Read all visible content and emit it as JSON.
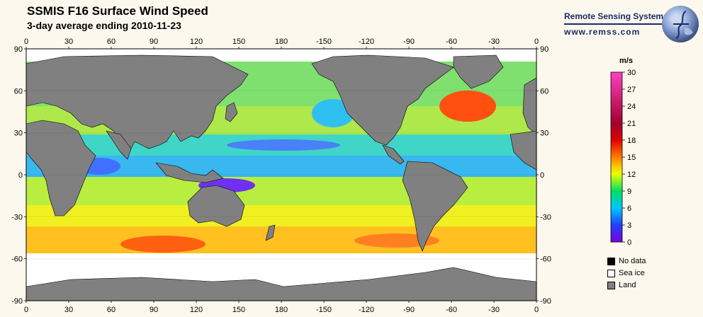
{
  "header": {
    "title": "SSMIS F16 Surface Wind Speed",
    "subtitle": "3-day average ending 2010-11-23"
  },
  "brand": {
    "name": "Remote Sensing Systems",
    "url": "www.remss.com",
    "logo_icon": "globe-icon"
  },
  "map": {
    "lon_ticks": [
      "0",
      "30",
      "60",
      "90",
      "120",
      "150",
      "180",
      "-150",
      "-120",
      "-90",
      "-60",
      "-30",
      "0"
    ],
    "lat_ticks": [
      "90",
      "60",
      "30",
      "0",
      "-30",
      "-60",
      "-90"
    ],
    "colors": {
      "land": "#808080",
      "sea_ice": "#ffffff",
      "no_data": "#000000",
      "frame": "#000000"
    }
  },
  "colorbar": {
    "unit": "m/s",
    "ticks": [
      "30",
      "27",
      "24",
      "21",
      "18",
      "15",
      "12",
      "9",
      "6",
      "3",
      "0"
    ],
    "stops": [
      "#7a00e0",
      "#2040ff",
      "#00c8ff",
      "#00e060",
      "#e8ff00",
      "#ffc000",
      "#ff6000",
      "#e00000",
      "#a00030",
      "#ff40c0"
    ]
  },
  "legend": {
    "items": [
      {
        "label": "No data",
        "color": "#000000"
      },
      {
        "label": "Sea ice",
        "color": "#ffffff"
      },
      {
        "label": "Land",
        "color": "#808080"
      }
    ]
  }
}
